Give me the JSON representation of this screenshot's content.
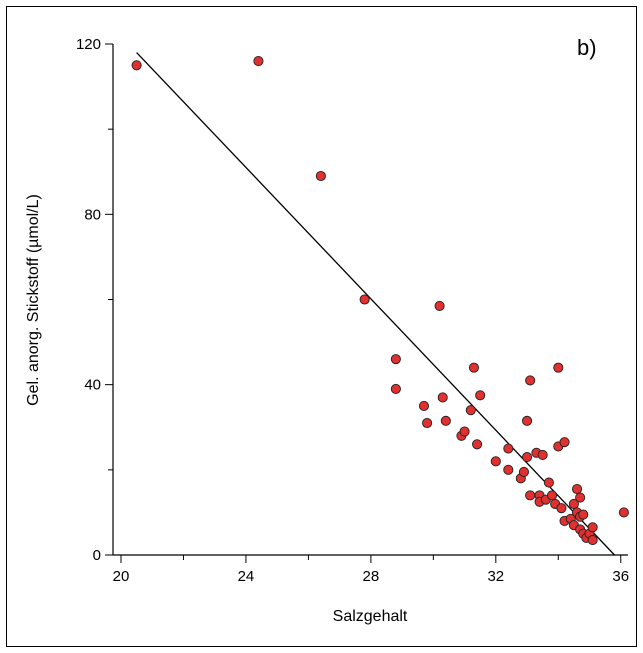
{
  "chart_data": {
    "type": "scatter",
    "panel_label": "b)",
    "xlabel": "Salzgehalt",
    "ylabel": "Gel. anorg. Stickstoff  (µmol/L)",
    "xlim": [
      20,
      36.2
    ],
    "ylim": [
      0,
      120
    ],
    "xticks": [
      20,
      24,
      28,
      32,
      36
    ],
    "yticks": [
      0,
      40,
      80,
      120
    ],
    "x_minor_step": 2,
    "y_minor_step": 20,
    "grid": false,
    "point_color": "#e03030",
    "points": [
      [
        20.5,
        115
      ],
      [
        24.4,
        116
      ],
      [
        26.4,
        89
      ],
      [
        27.8,
        60
      ],
      [
        28.8,
        46
      ],
      [
        28.8,
        39
      ],
      [
        29.7,
        35
      ],
      [
        29.8,
        31
      ],
      [
        30.2,
        58.5
      ],
      [
        30.3,
        37
      ],
      [
        30.4,
        31.5
      ],
      [
        30.9,
        28
      ],
      [
        31.0,
        29
      ],
      [
        31.2,
        34
      ],
      [
        31.3,
        44
      ],
      [
        31.4,
        26
      ],
      [
        31.5,
        37.5
      ],
      [
        32.0,
        22
      ],
      [
        32.4,
        20
      ],
      [
        32.4,
        25
      ],
      [
        32.8,
        18
      ],
      [
        32.9,
        19.5
      ],
      [
        33.0,
        31.5
      ],
      [
        33.0,
        23
      ],
      [
        33.1,
        41
      ],
      [
        33.1,
        14
      ],
      [
        33.3,
        24
      ],
      [
        33.4,
        14
      ],
      [
        33.4,
        12.5
      ],
      [
        33.5,
        23.5
      ],
      [
        33.6,
        13
      ],
      [
        33.7,
        17
      ],
      [
        33.8,
        14
      ],
      [
        33.9,
        12
      ],
      [
        34.0,
        44
      ],
      [
        34.0,
        25.5
      ],
      [
        34.1,
        11
      ],
      [
        34.2,
        26.5
      ],
      [
        34.2,
        8
      ],
      [
        34.4,
        8.5
      ],
      [
        34.5,
        12
      ],
      [
        34.5,
        7
      ],
      [
        34.6,
        15.5
      ],
      [
        34.6,
        10
      ],
      [
        34.7,
        9
      ],
      [
        34.7,
        6
      ],
      [
        34.7,
        13.5
      ],
      [
        34.8,
        9.5
      ],
      [
        34.8,
        5
      ],
      [
        34.9,
        4
      ],
      [
        35.0,
        5
      ],
      [
        35.1,
        3.5
      ],
      [
        35.1,
        6.5
      ],
      [
        36.1,
        10
      ]
    ],
    "fit_line": {
      "x": [
        20.5,
        35.8
      ],
      "y": [
        118,
        0
      ]
    }
  }
}
